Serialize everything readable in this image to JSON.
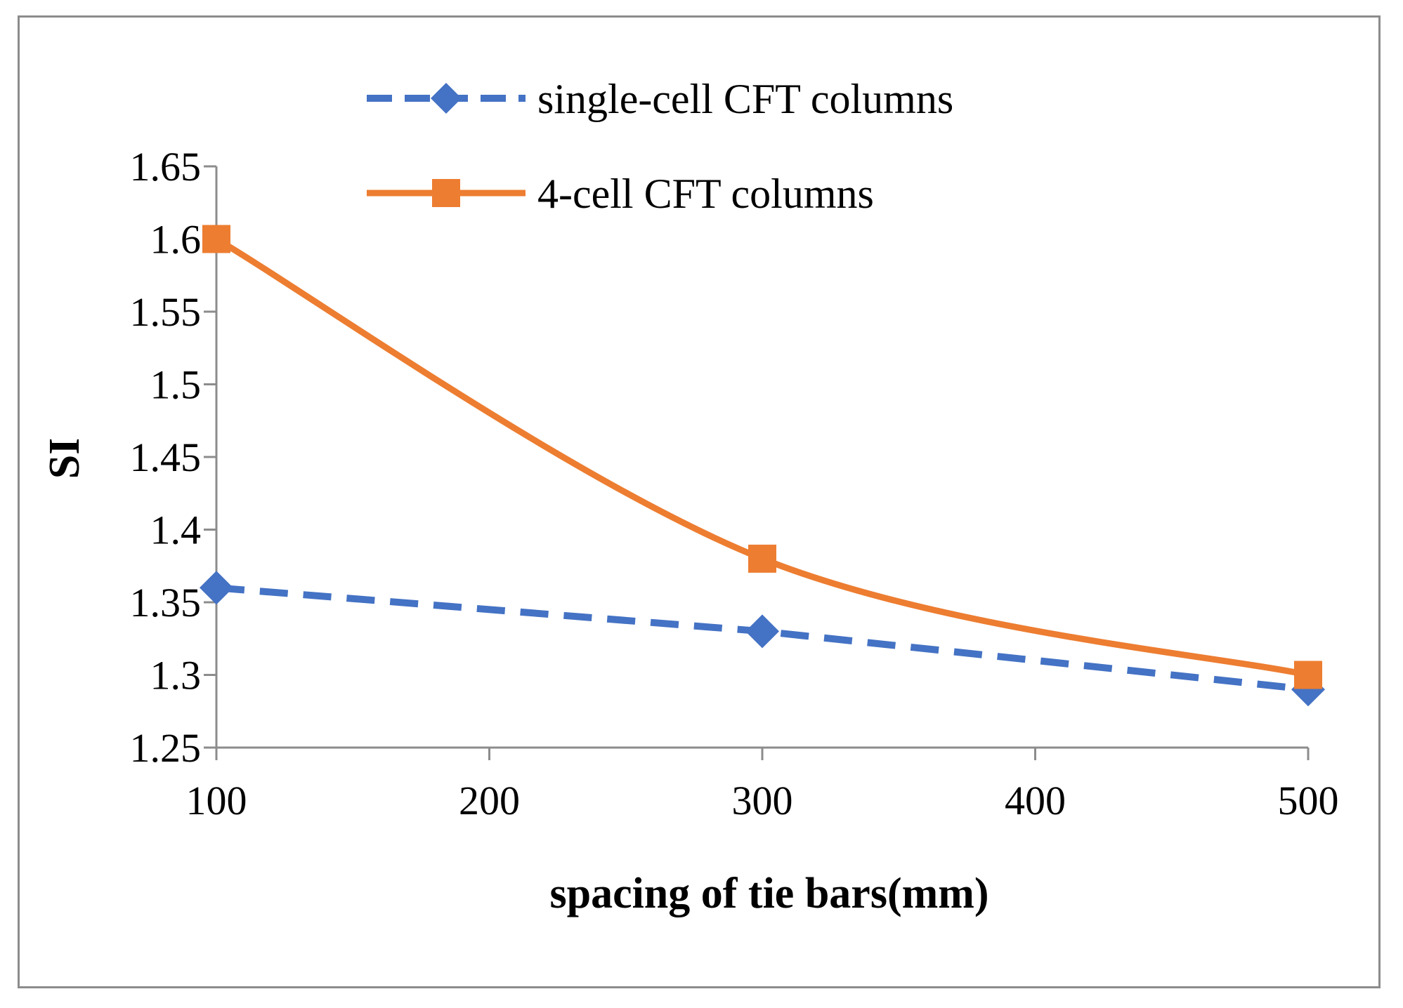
{
  "chart_data": {
    "type": "line",
    "title": "",
    "xlabel": "spacing of tie bars(mm)",
    "ylabel": "SI",
    "x": [
      100,
      300,
      500
    ],
    "x_ticks": [
      "100",
      "200",
      "300",
      "400",
      "500"
    ],
    "x_tick_values": [
      100,
      200,
      300,
      400,
      500
    ],
    "xlim": [
      100,
      500
    ],
    "y_ticks": [
      "1.25",
      "1.3",
      "1.35",
      "1.4",
      "1.45",
      "1.5",
      "1.55",
      "1.6",
      "1.65"
    ],
    "y_tick_values": [
      1.25,
      1.3,
      1.35,
      1.4,
      1.45,
      1.5,
      1.55,
      1.6,
      1.65
    ],
    "ylim": [
      1.25,
      1.65
    ],
    "grid": false,
    "legend_position": "top",
    "series": [
      {
        "name": "single-cell CFT columns",
        "values": [
          1.36,
          1.33,
          1.29
        ],
        "color": "#4472c4",
        "line_style": "dashed",
        "marker": "diamond"
      },
      {
        "name": "4-cell CFT columns",
        "values": [
          1.6,
          1.38,
          1.3
        ],
        "color": "#ed7d31",
        "line_style": "solid-smooth",
        "marker": "square"
      }
    ]
  }
}
